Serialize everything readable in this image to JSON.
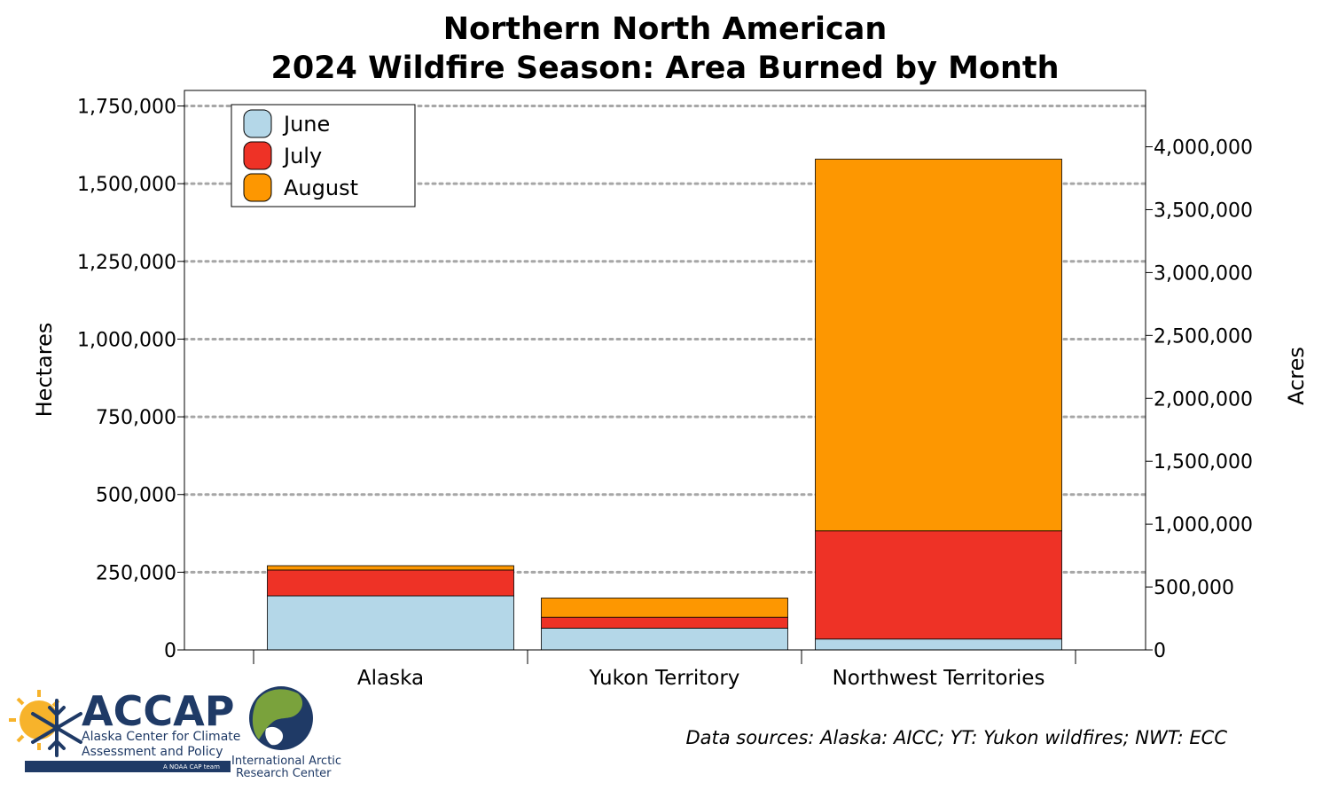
{
  "chart_data": {
    "type": "bar",
    "stacked": true,
    "title_lines": [
      "Northern North American",
      "2024 Wildfire Season: Area Burned by Month"
    ],
    "categories": [
      "Alaska",
      "Yukon Territory",
      "Northwest Territories"
    ],
    "series": [
      {
        "name": "June",
        "color": "#b4d7e8",
        "values": [
          174000,
          70000,
          35000
        ]
      },
      {
        "name": "July",
        "color": "#ee3226",
        "values": [
          83000,
          35000,
          348000
        ]
      },
      {
        "name": "August",
        "color": "#fd9701",
        "values": [
          14000,
          62000,
          1196000
        ]
      }
    ],
    "ylabel": "Hectares",
    "y2label": "Acres",
    "ylim": [
      0,
      1800000
    ],
    "yticks": [
      0,
      250000,
      500000,
      750000,
      1000000,
      1250000,
      1500000,
      1750000
    ],
    "ytick_labels": [
      "0",
      "250,000",
      "500,000",
      "750,000",
      "1,000,000",
      "1,250,000",
      "1,500,000",
      "1,750,000"
    ],
    "y2lim": [
      0,
      4447926
    ],
    "y2ticks": [
      0,
      500000,
      1000000,
      1500000,
      2000000,
      2500000,
      3000000,
      3500000,
      4000000
    ],
    "y2tick_labels": [
      "0",
      "500,000",
      "1,000,000",
      "1,500,000",
      "2,000,000",
      "2,500,000",
      "3,000,000",
      "3,500,000",
      "4,000,000"
    ],
    "grid": "horizontal dotted",
    "legend_position": "top-left"
  },
  "source_note": "Data sources: Alaska: AICC; YT: Yukon wildfires; NWT: ECC",
  "logos": {
    "accap": {
      "name": "ACCAP",
      "line1": "Alaska Center for Climate",
      "line2": "Assessment and Policy",
      "tagline": "A NOAA CAP team"
    },
    "iarc": {
      "line1": "International Arctic",
      "line2": "Research Center"
    }
  }
}
